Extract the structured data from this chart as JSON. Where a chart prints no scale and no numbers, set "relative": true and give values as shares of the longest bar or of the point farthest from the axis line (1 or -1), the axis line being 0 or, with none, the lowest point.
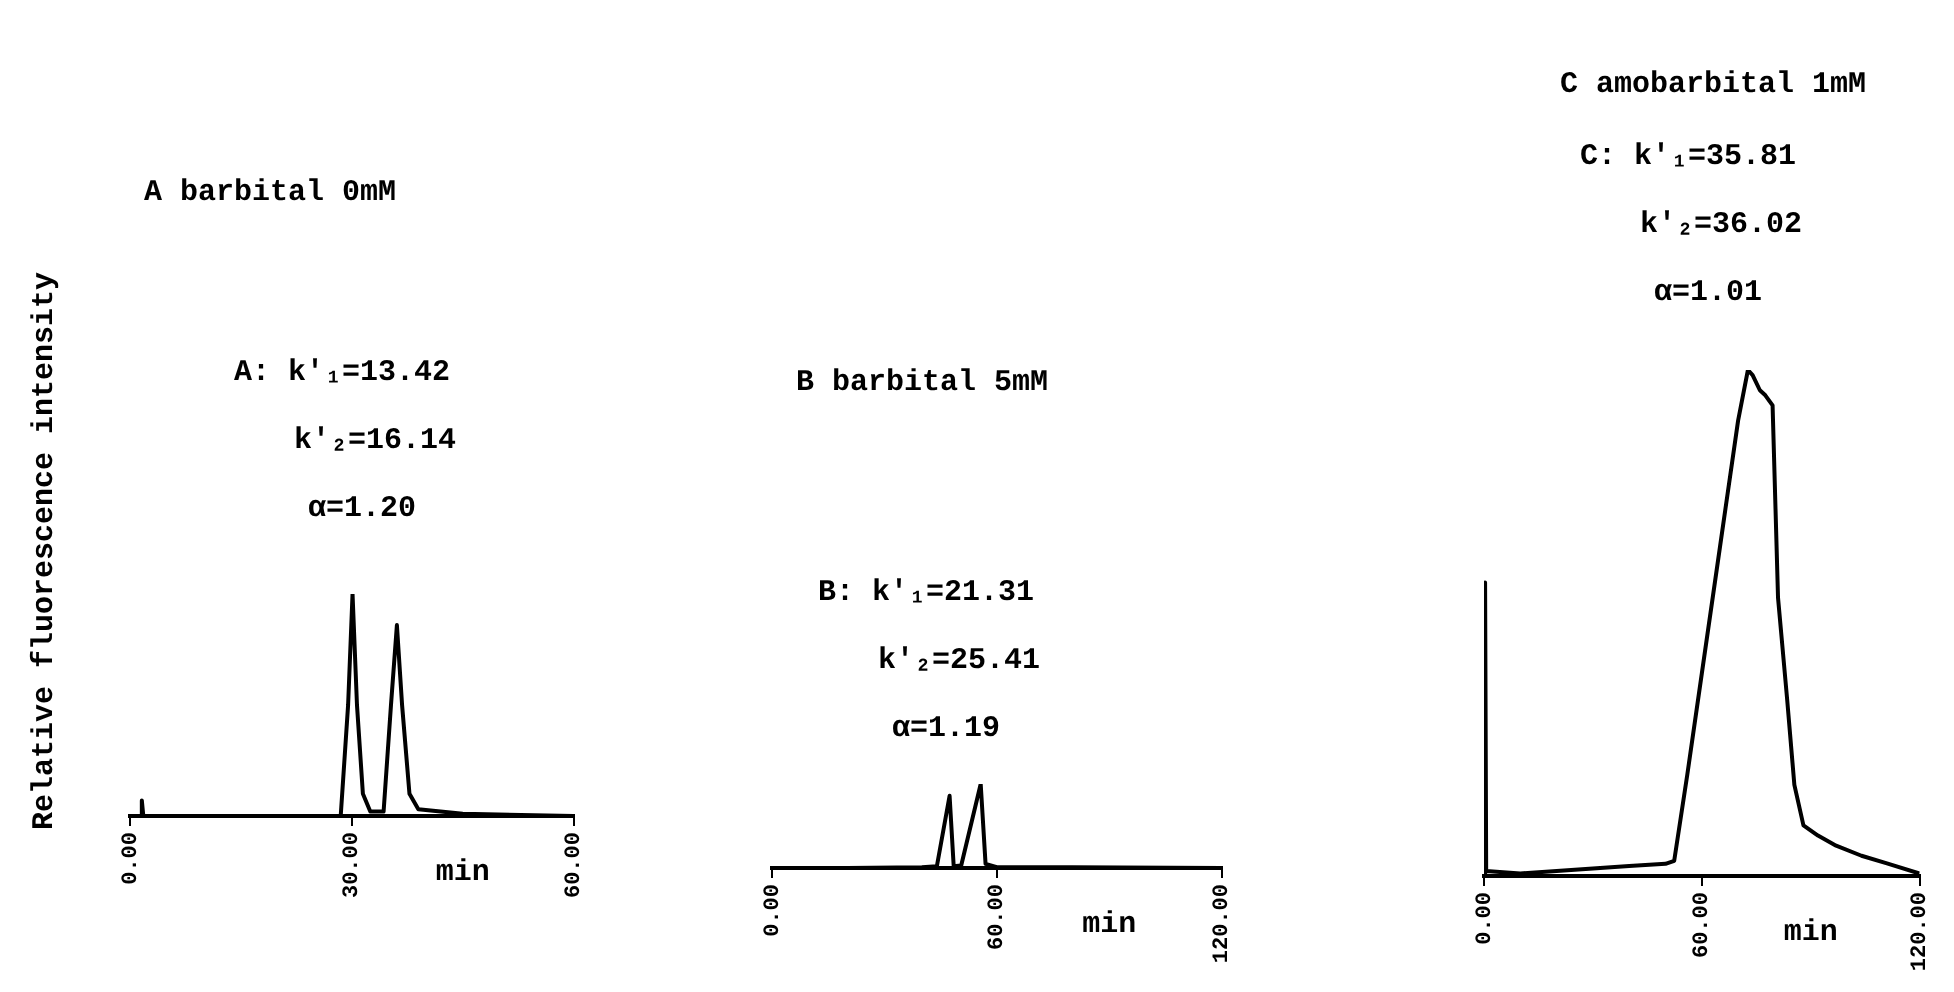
{
  "chart_data": [
    {
      "type": "line",
      "title": "A  barbital 0mM",
      "ylabel": "Relative fluorescence intensity",
      "xlabel": "min",
      "relative": true,
      "color": "#000000",
      "grid": false,
      "legend": false,
      "marker": "none",
      "x": [
        0,
        1.5,
        1.6,
        1.8,
        10,
        28.5,
        29.5,
        30.1,
        30.7,
        31.5,
        32.5,
        34.3,
        35.3,
        36.1,
        36.8,
        37.8,
        39,
        45,
        60
      ],
      "values": [
        0,
        0,
        0.07,
        0,
        0,
        0,
        0.5,
        1.0,
        0.5,
        0.1,
        0.02,
        0.02,
        0.5,
        0.86,
        0.5,
        0.1,
        0.03,
        0.01,
        0
      ],
      "xlim": [
        0,
        60
      ],
      "xticks": [
        {
          "value": 0,
          "label": "0.00"
        },
        {
          "value": 30,
          "label": "30.00"
        },
        {
          "value": 60,
          "label": "60.00"
        }
      ],
      "annotations": [
        "A: k'₁=13.42",
        "k'₂=16.14",
        "α=1.20"
      ]
    },
    {
      "type": "line",
      "title": "B  barbital 5mM",
      "xlabel": "min",
      "relative": true,
      "color": "#000000",
      "grid": false,
      "legend": false,
      "marker": "none",
      "x": [
        0,
        20,
        40,
        44,
        47.4,
        48.5,
        50.5,
        55.7,
        57,
        60,
        80,
        120
      ],
      "values": [
        0,
        0,
        0.01,
        0.02,
        0.86,
        0.02,
        0.03,
        1.0,
        0.05,
        0.01,
        0.01,
        0
      ],
      "xlim": [
        0,
        120
      ],
      "xticks": [
        {
          "value": 0,
          "label": "0.00"
        },
        {
          "value": 60,
          "label": "60.00"
        },
        {
          "value": 120,
          "label": "120.00"
        }
      ],
      "annotations": [
        "B: k'₁=21.31",
        "k'₂=25.41",
        "α=1.19"
      ]
    },
    {
      "type": "line",
      "title": "C  amobarbital 1mM",
      "xlabel": "min",
      "relative": true,
      "color": "#000000",
      "grid": false,
      "legend": false,
      "marker": "none",
      "x": [
        0,
        0.3,
        0.6,
        10,
        20,
        30,
        40,
        50,
        52.4,
        56,
        60,
        65,
        70,
        72.7,
        74,
        76,
        77.5,
        79.5,
        81,
        83.5,
        85.5,
        88,
        92,
        97,
        104,
        111,
        120
      ],
      "values": [
        0,
        0.58,
        0.01,
        0.005,
        0.01,
        0.015,
        0.02,
        0.024,
        0.03,
        0.2,
        0.4,
        0.65,
        0.9,
        1.0,
        0.99,
        0.96,
        0.95,
        0.93,
        0.55,
        0.35,
        0.18,
        0.1,
        0.08,
        0.06,
        0.04,
        0.025,
        0.005
      ],
      "xlim": [
        0,
        120
      ],
      "xticks": [
        {
          "value": 0,
          "label": "0.00"
        },
        {
          "value": 60,
          "label": "60.00"
        },
        {
          "value": 120,
          "label": "120.00"
        }
      ],
      "annotations": [
        "C: k'₁=35.81",
        "k'₂=36.02",
        "α=1.01"
      ]
    }
  ]
}
